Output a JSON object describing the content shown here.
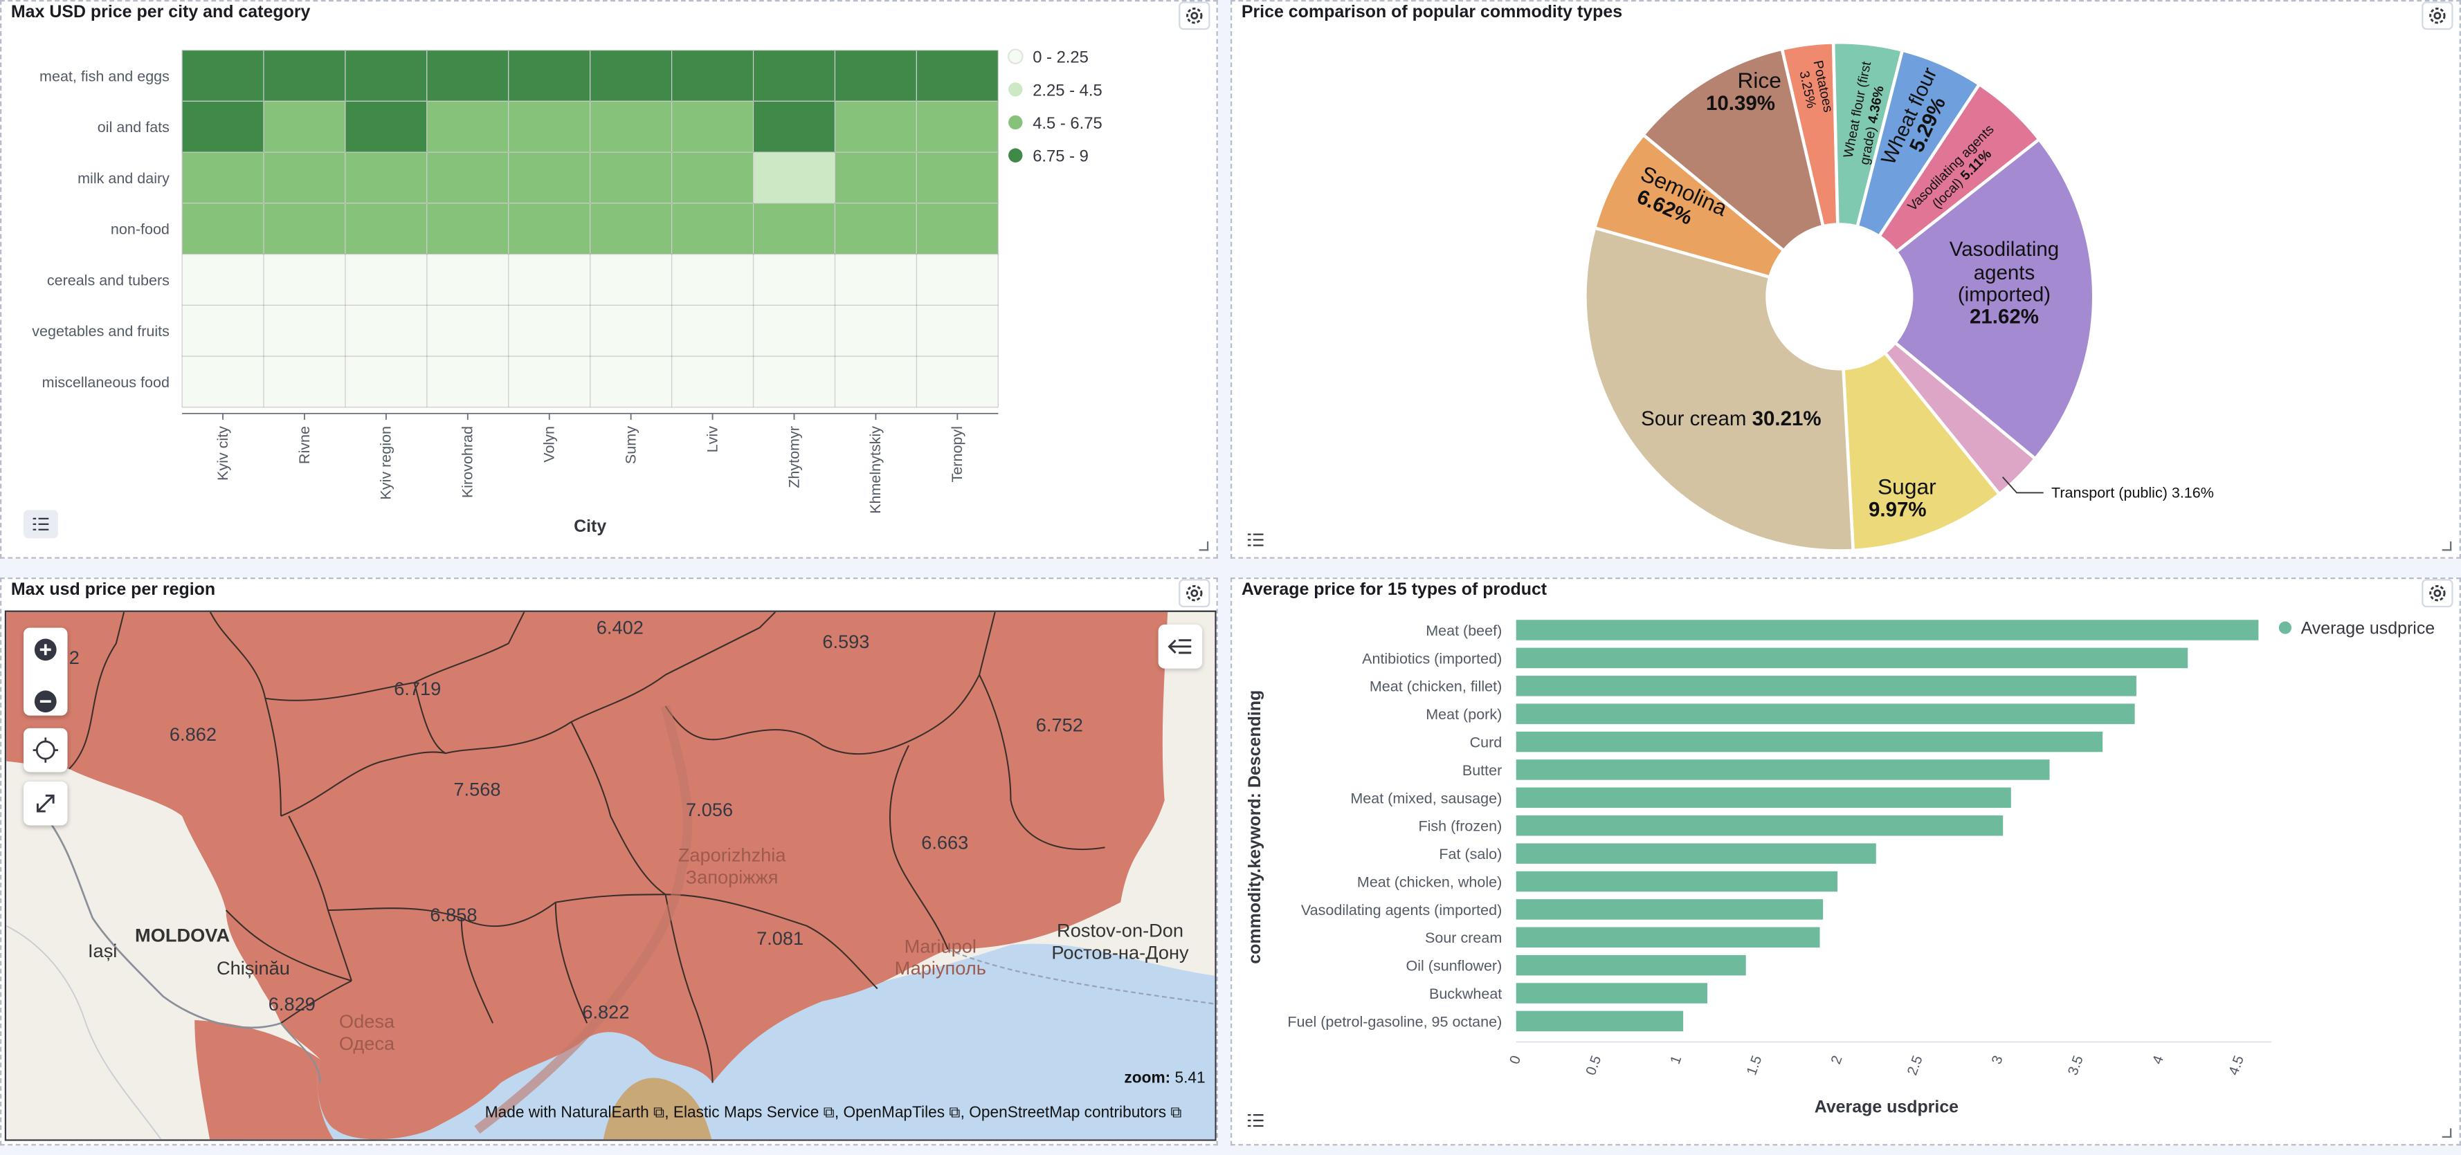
{
  "heatmap": {
    "title": "Max USD price per city and category",
    "xlabel": "City",
    "categories": [
      "meat, fish and eggs",
      "oil and fats",
      "milk and dairy",
      "non-food",
      "cereals and tubers",
      "vegetables and fruits",
      "miscellaneous food"
    ],
    "cities": [
      "Kyiv city",
      "Rivne",
      "Kyiv region",
      "Kirovohrad",
      "Volyn",
      "Sumy",
      "Lviv",
      "Zhytomyr",
      "Khmelnytskiy",
      "Ternopyl"
    ],
    "legend": [
      "0 - 2.25",
      "2.25 - 4.5",
      "4.5 - 6.75",
      "6.75 - 9"
    ],
    "colors": [
      "#f5faf3",
      "#cde8c4",
      "#86c27a",
      "#3f8a48"
    ],
    "bins": [
      [
        3,
        3,
        3,
        3,
        3,
        3,
        3,
        3,
        3,
        3
      ],
      [
        3,
        2,
        3,
        2,
        2,
        2,
        2,
        3,
        2,
        2
      ],
      [
        2,
        2,
        2,
        2,
        2,
        2,
        2,
        1,
        2,
        2
      ],
      [
        2,
        2,
        2,
        2,
        2,
        2,
        2,
        2,
        2,
        2
      ],
      [
        0,
        0,
        0,
        0,
        0,
        0,
        0,
        0,
        0,
        0
      ],
      [
        0,
        0,
        0,
        0,
        0,
        0,
        0,
        0,
        0,
        0
      ],
      [
        0,
        0,
        0,
        0,
        0,
        0,
        0,
        0,
        0,
        0
      ]
    ]
  },
  "pie": {
    "title": "Price comparison of popular commodity types",
    "outside_label": "Transport (public)  3.16%",
    "slices": [
      {
        "label": "Potatoes",
        "pct": 3.25,
        "color": "#ef8a6f"
      },
      {
        "label": "Wheat flour (first grade)",
        "pct": 4.36,
        "color": "#7fc9b0"
      },
      {
        "label": "Wheat flour",
        "pct": 5.29,
        "color": "#6f9fdc"
      },
      {
        "label": "Vasodilating agents (local)",
        "pct": 5.11,
        "color": "#e07596"
      },
      {
        "label": "Vasodilating agents (imported)",
        "pct": 21.62,
        "color": "#a38ad1"
      },
      {
        "label": "Transport (public)",
        "pct": 3.16,
        "color": "#dea6c6"
      },
      {
        "label": "Sugar",
        "pct": 9.97,
        "color": "#ecd97a"
      },
      {
        "label": "Sour cream",
        "pct": 30.21,
        "color": "#d3c3a3"
      },
      {
        "label": "Semolina",
        "pct": 6.62,
        "color": "#eaa261"
      },
      {
        "label": "Rice",
        "pct": 10.39,
        "color": "#b68371"
      }
    ],
    "labels": {
      "rice": "Rice",
      "rice_pct": "10.39%",
      "potatoes": "Potatoes",
      "potatoes_pct": "3.25%",
      "wf1a": "Wheat flour (first",
      "wf1b": "grade) ",
      "wf1_pct": "4.36%",
      "wf": "Wheat flour",
      "wf_pct": "5.29%",
      "val1": "Vasodilating agents",
      "val2": "(local) ",
      "val_pct": "5.11%",
      "semolina": "Semolina",
      "semolina_pct": "6.62%",
      "vai1": "Vasodilating",
      "vai2": "agents",
      "vai3": "(imported)",
      "vai_pct": "21.62%",
      "sour": "Sour cream ",
      "sour_pct": "30.21%",
      "sugar": "Sugar",
      "sugar_pct": "9.97%"
    }
  },
  "map": {
    "title": "Max usd price per region",
    "regions": [
      "6.402",
      "6.593",
      "6.719",
      "6.862",
      "6.752",
      "7.568",
      "7.056",
      "6.663",
      "6.858",
      "7.081",
      "6.829",
      "6.822",
      "2"
    ],
    "places": {
      "zap1": "Zaporizhzhia",
      "zap2": "Запоріжжя",
      "rost1": "Rostov-on-Don",
      "rost2": "Ростов-на-Дону",
      "moldova": "MOLDOVA",
      "iasi": "Iași",
      "chisinau": "Chișinău",
      "odesa1": "Odesa",
      "odesa2": "Одеса",
      "mar1": "Mariupol",
      "mar2": "Маріуполь"
    },
    "zoom_label": "zoom:",
    "zoom_value": "5.41",
    "attribution": [
      "Made with NaturalEarth",
      "Elastic Maps Service",
      "OpenMapTiles",
      "OpenStreetMap contributors"
    ],
    "colors": {
      "region": "#d47d6c",
      "sea": "#bfd8ef",
      "land": "#f2efe9"
    }
  },
  "bar": {
    "title": "Average price for 15 types of product",
    "legend": "Average usdprice",
    "xlabel": "Average usdprice",
    "ylabel": "commodity.keyword: Descending",
    "color": "#6dbb9c",
    "categories": [
      "Meat (beef)",
      "Antibiotics (imported)",
      "Meat (chicken, fillet)",
      "Meat (pork)",
      "Curd",
      "Butter",
      "Meat (mixed, sausage)",
      "Fish (frozen)",
      "Fat (salo)",
      "Meat (chicken, whole)",
      "Vasodilating agents (imported)",
      "Sour cream",
      "Oil (sunflower)",
      "Buckwheat",
      "Fuel (petrol-gasoline, 95 octane)"
    ],
    "values": [
      4.62,
      4.18,
      3.86,
      3.85,
      3.65,
      3.32,
      3.08,
      3.03,
      2.24,
      2.0,
      1.91,
      1.89,
      1.43,
      1.19,
      1.04
    ],
    "ticks": [
      "0",
      "0.5",
      "1",
      "1.5",
      "2",
      "2.5",
      "3",
      "3.5",
      "4",
      "4.5"
    ],
    "xlim": [
      0,
      4.7
    ]
  }
}
